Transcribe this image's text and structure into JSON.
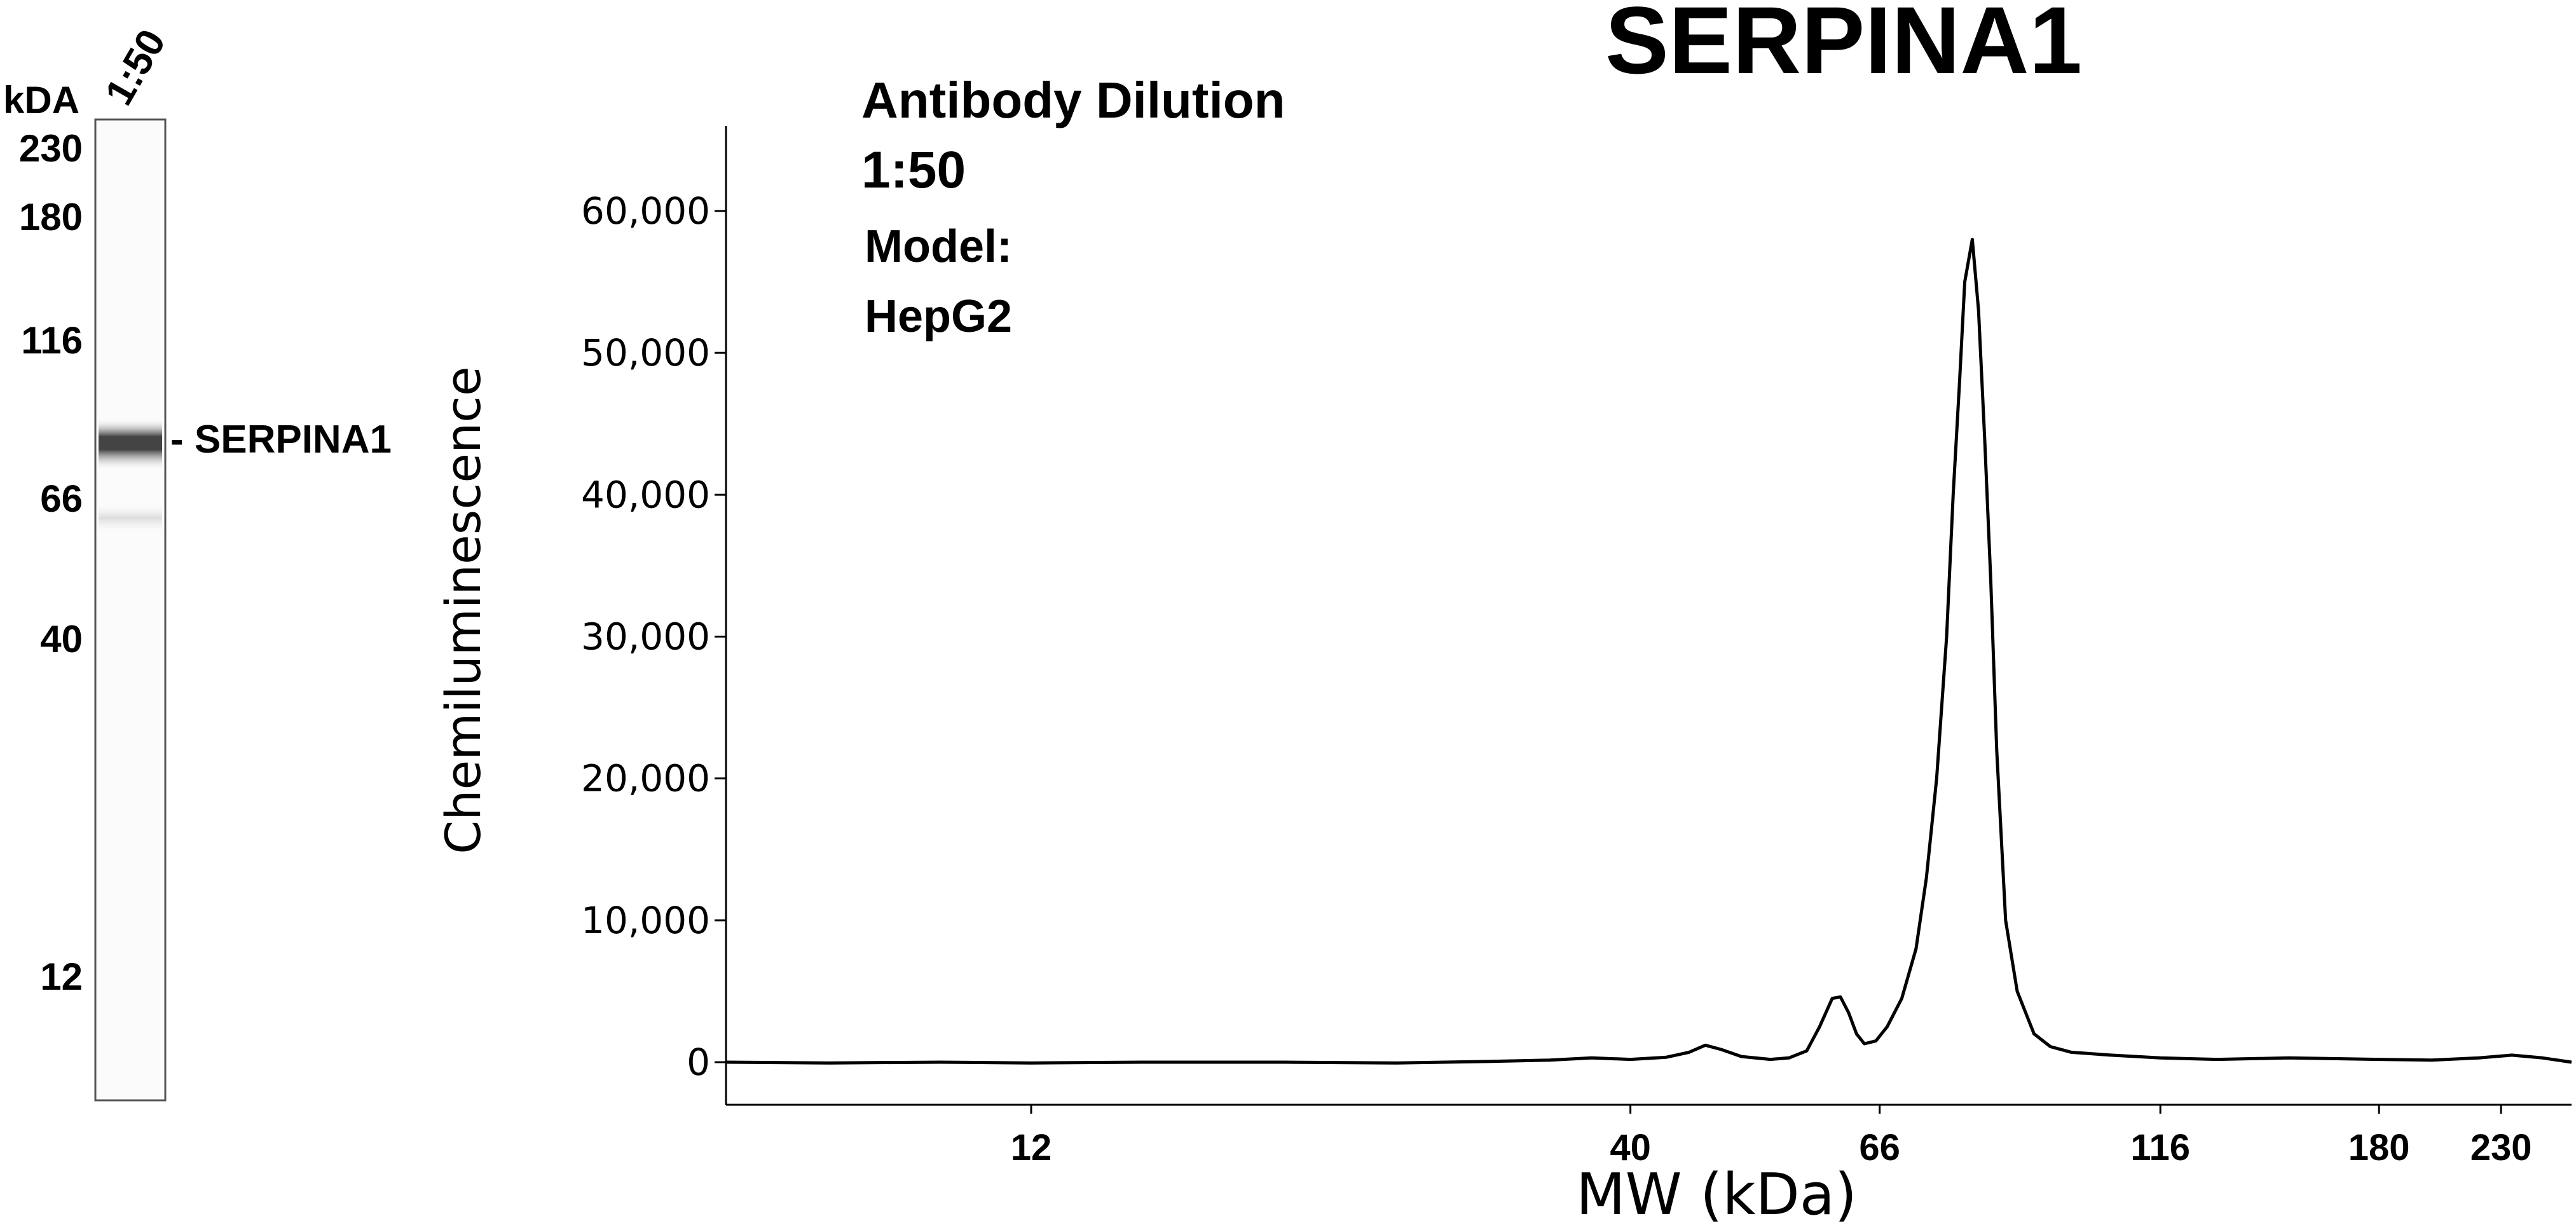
{
  "title": "SERPINA1",
  "gel": {
    "lane_label": "1:50",
    "unit_label": "kDA",
    "markers": [
      {
        "label": "230",
        "kda": 230
      },
      {
        "label": "180",
        "kda": 180
      },
      {
        "label": "116",
        "kda": 116
      },
      {
        "label": "66",
        "kda": 66
      },
      {
        "label": "40",
        "kda": 40
      },
      {
        "label": "12",
        "kda": 12
      }
    ],
    "band_label": "- SERPINA1",
    "band_kda": 66,
    "colors": {
      "band": "#444444",
      "lane_border": "#555555"
    }
  },
  "annotation": {
    "line1": "Antibody Dilution",
    "line2": "1:50",
    "line3": "Model:",
    "line4": "HepG2"
  },
  "chart_data": {
    "type": "line",
    "title": "SERPINA1",
    "xlabel": "MW (kDa)",
    "ylabel": "Chemiluminescence",
    "x_scale": "log",
    "x_ticks": [
      {
        "label": "12",
        "value": 12
      },
      {
        "label": "40",
        "value": 40
      },
      {
        "label": "66",
        "value": 66
      },
      {
        "label": "116",
        "value": 116
      },
      {
        "label": "180",
        "value": 180
      },
      {
        "label": "230",
        "value": 230
      }
    ],
    "y_ticks": [
      {
        "label": "0",
        "value": 0
      },
      {
        "label": "10,000",
        "value": 10000
      },
      {
        "label": "20,000",
        "value": 20000
      },
      {
        "label": "30,000",
        "value": 30000
      },
      {
        "label": "40,000",
        "value": 40000
      },
      {
        "label": "50,000",
        "value": 50000
      },
      {
        "label": "60,000",
        "value": 60000
      }
    ],
    "xlim": [
      6.5,
      265
    ],
    "ylim": [
      -3000,
      66000
    ],
    "grid": false,
    "series": [
      {
        "color": "#000000",
        "points": [
          [
            6.5,
            0
          ],
          [
            8,
            -50
          ],
          [
            10,
            0
          ],
          [
            12,
            -50
          ],
          [
            15,
            0
          ],
          [
            20,
            0
          ],
          [
            25,
            -50
          ],
          [
            30,
            50
          ],
          [
            34,
            150
          ],
          [
            37,
            300
          ],
          [
            40,
            200
          ],
          [
            43,
            350
          ],
          [
            45,
            700
          ],
          [
            46.5,
            1200
          ],
          [
            48,
            900
          ],
          [
            50,
            400
          ],
          [
            53,
            200
          ],
          [
            55,
            300
          ],
          [
            57,
            800
          ],
          [
            58.5,
            2500
          ],
          [
            60,
            4500
          ],
          [
            61,
            4600
          ],
          [
            62,
            3500
          ],
          [
            63,
            2000
          ],
          [
            64,
            1300
          ],
          [
            65.5,
            1500
          ],
          [
            67,
            2500
          ],
          [
            69,
            4500
          ],
          [
            71,
            8000
          ],
          [
            72.5,
            13000
          ],
          [
            74,
            20000
          ],
          [
            75.5,
            30000
          ],
          [
            76.5,
            40000
          ],
          [
            77.5,
            48000
          ],
          [
            78.3,
            55000
          ],
          [
            79.5,
            58000
          ],
          [
            80.5,
            53000
          ],
          [
            81.5,
            44000
          ],
          [
            82.5,
            34000
          ],
          [
            83.5,
            22000
          ],
          [
            85,
            10000
          ],
          [
            87,
            5000
          ],
          [
            90,
            2000
          ],
          [
            93,
            1100
          ],
          [
            97,
            700
          ],
          [
            105,
            500
          ],
          [
            116,
            300
          ],
          [
            130,
            200
          ],
          [
            150,
            300
          ],
          [
            180,
            200
          ],
          [
            200,
            150
          ],
          [
            220,
            300
          ],
          [
            235,
            500
          ],
          [
            250,
            300
          ],
          [
            265,
            0
          ]
        ]
      }
    ]
  }
}
